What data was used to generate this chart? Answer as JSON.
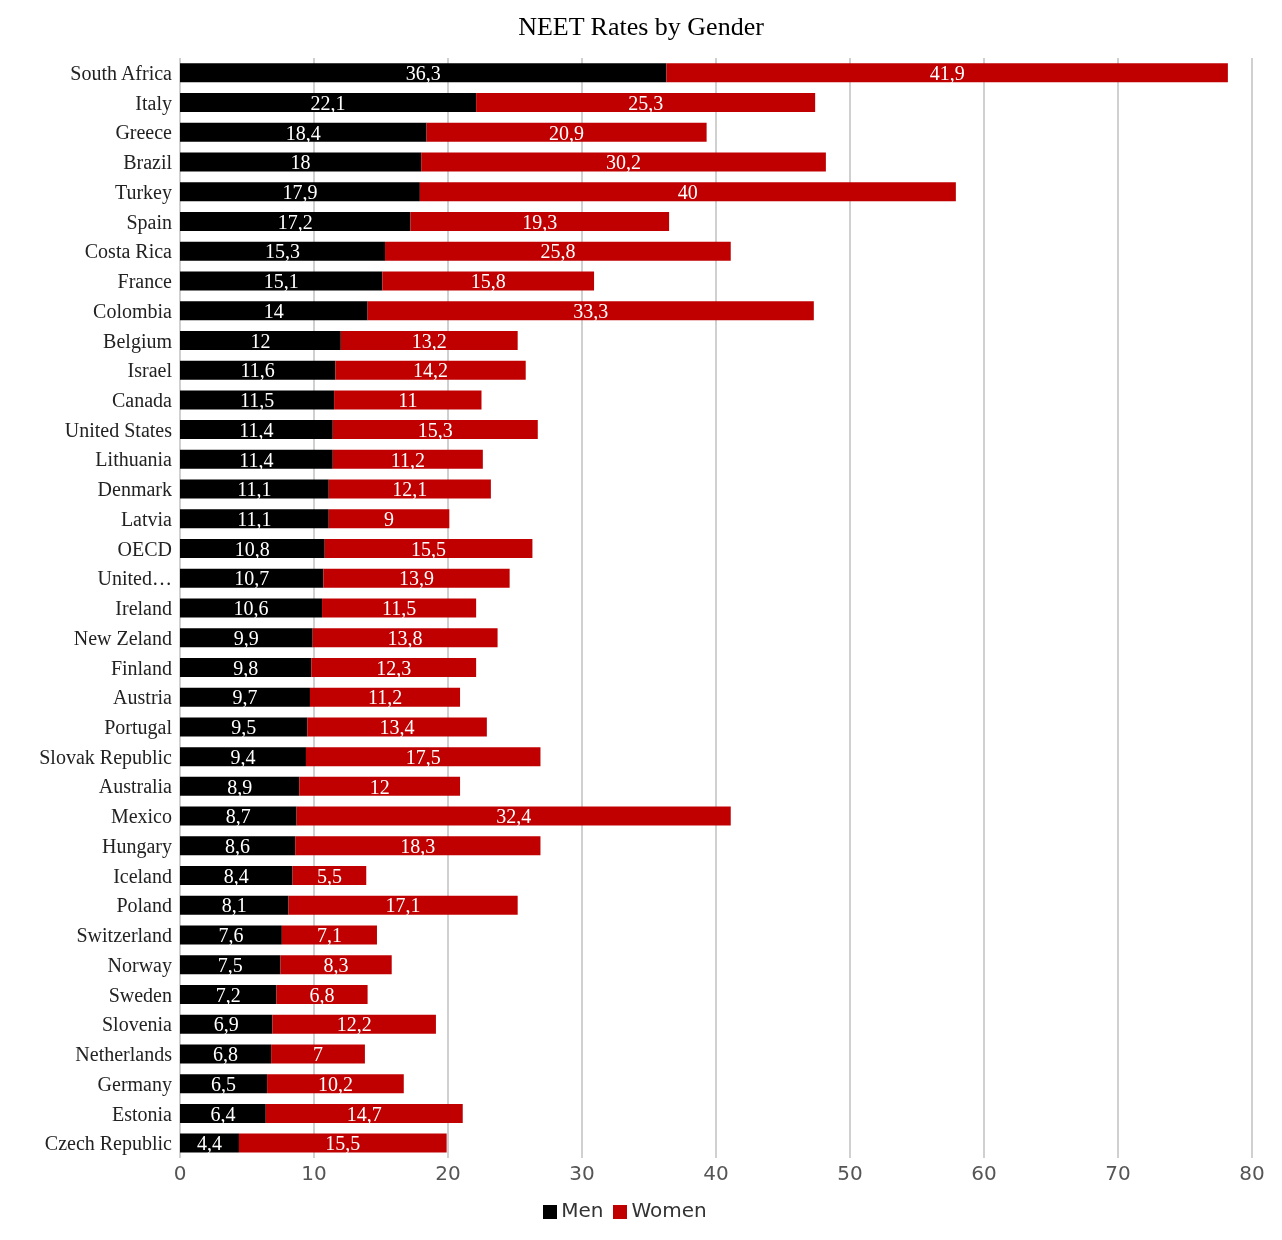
{
  "chart_data": {
    "type": "bar",
    "orientation": "horizontal",
    "stacked": true,
    "title": "NEET Rates by Gender",
    "categories": [
      "South Africa",
      "Italy",
      "Greece",
      "Brazil",
      "Turkey",
      "Spain",
      "Costa Rica",
      "France",
      "Colombia",
      "Belgium",
      "Israel",
      "Canada",
      "United States",
      "Lithuania",
      "Denmark",
      "Latvia",
      "OECD",
      "United…",
      "Ireland",
      "New Zeland",
      "Finland",
      "Austria",
      "Portugal",
      "Slovak Republic",
      "Australia",
      "Mexico",
      "Hungary",
      "Iceland",
      "Poland",
      "Switzerland",
      "Norway",
      "Sweden",
      "Slovenia",
      "Netherlands",
      "Germany",
      "Estonia",
      "Czech Republic"
    ],
    "series": [
      {
        "name": "Men",
        "color": "#000000",
        "values": [
          36.3,
          22.1,
          18.4,
          18,
          17.9,
          17.2,
          15.3,
          15.1,
          14,
          12,
          11.6,
          11.5,
          11.4,
          11.4,
          11.1,
          11.1,
          10.8,
          10.7,
          10.6,
          9.9,
          9.8,
          9.7,
          9.5,
          9.4,
          8.9,
          8.7,
          8.6,
          8.4,
          8.1,
          7.6,
          7.5,
          7.2,
          6.9,
          6.8,
          6.5,
          6.4,
          4.4
        ],
        "value_labels": [
          "36,3",
          "22,1",
          "18,4",
          "18",
          "17,9",
          "17,2",
          "15,3",
          "15,1",
          "14",
          "12",
          "11,6",
          "11,5",
          "11,4",
          "11,4",
          "11,1",
          "11,1",
          "10,8",
          "10,7",
          "10,6",
          "9,9",
          "9,8",
          "9,7",
          "9,5",
          "9,4",
          "8,9",
          "8,7",
          "8,6",
          "8,4",
          "8,1",
          "7,6",
          "7,5",
          "7,2",
          "6,9",
          "6,8",
          "6,5",
          "6,4",
          "4,4"
        ]
      },
      {
        "name": "Women",
        "color": "#c00000",
        "values": [
          41.9,
          25.3,
          20.9,
          30.2,
          40,
          19.3,
          25.8,
          15.8,
          33.3,
          13.2,
          14.2,
          11,
          15.3,
          11.2,
          12.1,
          9,
          15.5,
          13.9,
          11.5,
          13.8,
          12.3,
          11.2,
          13.4,
          17.5,
          12,
          32.4,
          18.3,
          5.5,
          17.1,
          7.1,
          8.3,
          6.8,
          12.2,
          7,
          10.2,
          14.7,
          15.5
        ],
        "value_labels": [
          "41,9",
          "25,3",
          "20,9",
          "30,2",
          "40",
          "19,3",
          "25,8",
          "15,8",
          "33,3",
          "13,2",
          "14,2",
          "11",
          "15,3",
          "11,2",
          "12,1",
          "9",
          "15,5",
          "13,9",
          "11,5",
          "13,8",
          "12,3",
          "11,2",
          "13,4",
          "17,5",
          "12",
          "32,4",
          "18,3",
          "5,5",
          "17,1",
          "7,1",
          "8,3",
          "6,8",
          "12,2",
          "7",
          "10,2",
          "14,7",
          "15,5"
        ]
      }
    ],
    "xlim": [
      0,
      80
    ],
    "xticks": [
      0,
      10,
      20,
      30,
      40,
      50,
      60,
      70,
      80
    ],
    "grid": "x",
    "legend": "bottom"
  }
}
